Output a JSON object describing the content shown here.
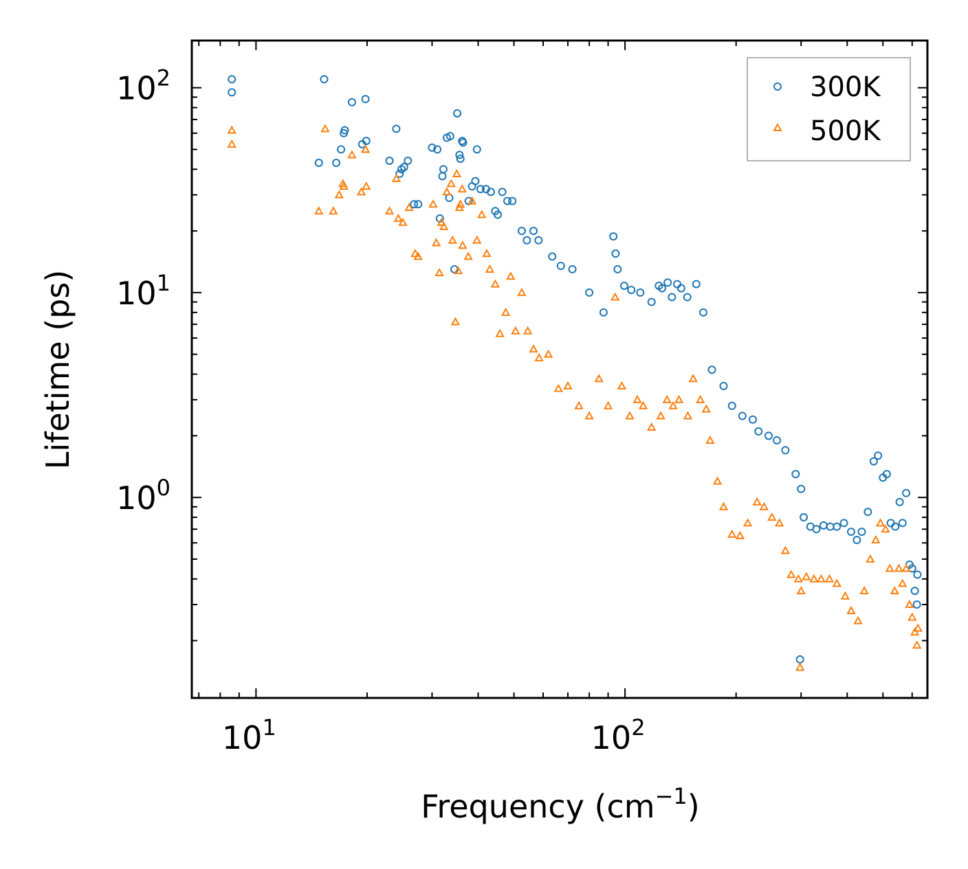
{
  "chart_data": {
    "type": "scatter",
    "title": "",
    "xlabel": "Frequency (cm",
    "xlabel_sup": "−1",
    "xlabel_end": ")",
    "ylabel": "Lifetime (ps)",
    "xscale": "log",
    "yscale": "log",
    "xlim": [
      6.7,
      660
    ],
    "ylim": [
      0.105,
      170
    ],
    "x_ticks": [
      {
        "value": 10,
        "base": "10",
        "exp": "1"
      },
      {
        "value": 100,
        "base": "10",
        "exp": "2"
      }
    ],
    "y_ticks": [
      {
        "value": 1,
        "base": "10",
        "exp": "0"
      },
      {
        "value": 10,
        "base": "10",
        "exp": "1"
      },
      {
        "value": 100,
        "base": "10",
        "exp": "2"
      }
    ],
    "legend_position": "top-right",
    "series": [
      {
        "name": "300K",
        "marker": "circle",
        "color": "#1f77b4",
        "points": [
          [
            8.6,
            110
          ],
          [
            8.6,
            95
          ],
          [
            15.3,
            110
          ],
          [
            14.8,
            43
          ],
          [
            16.5,
            43
          ],
          [
            17,
            50
          ],
          [
            17.3,
            60
          ],
          [
            17.4,
            62
          ],
          [
            18.2,
            85
          ],
          [
            19.4,
            53
          ],
          [
            19.9,
            55
          ],
          [
            19.8,
            88
          ],
          [
            23,
            44
          ],
          [
            24,
            63
          ],
          [
            24.5,
            38
          ],
          [
            24.8,
            40
          ],
          [
            25.2,
            41
          ],
          [
            25.8,
            44
          ],
          [
            26.8,
            27
          ],
          [
            27.5,
            27
          ],
          [
            30,
            51
          ],
          [
            31,
            50
          ],
          [
            31.5,
            23
          ],
          [
            32,
            37
          ],
          [
            32.2,
            40
          ],
          [
            32.9,
            57
          ],
          [
            33.6,
            58
          ],
          [
            33.4,
            29
          ],
          [
            34.5,
            13
          ],
          [
            35.1,
            75
          ],
          [
            35.6,
            47
          ],
          [
            35.8,
            45
          ],
          [
            36.2,
            55
          ],
          [
            36.4,
            54
          ],
          [
            37.7,
            28
          ],
          [
            38.5,
            33
          ],
          [
            39.3,
            35
          ],
          [
            39.7,
            50
          ],
          [
            40.6,
            32
          ],
          [
            42,
            32
          ],
          [
            43.3,
            31
          ],
          [
            44.5,
            25
          ],
          [
            45.2,
            24
          ],
          [
            46.5,
            31
          ],
          [
            48,
            28
          ],
          [
            49.5,
            28
          ],
          [
            52.5,
            20
          ],
          [
            54.2,
            18
          ],
          [
            56.5,
            20
          ],
          [
            58.3,
            18
          ],
          [
            63.5,
            15
          ],
          [
            67,
            13.5
          ],
          [
            72,
            13
          ],
          [
            80,
            10
          ],
          [
            87.5,
            8
          ],
          [
            93,
            18.8
          ],
          [
            94.3,
            15.5
          ],
          [
            95.5,
            13
          ],
          [
            99.5,
            10.8
          ],
          [
            104,
            10.3
          ],
          [
            110,
            10
          ],
          [
            118,
            9
          ],
          [
            123.5,
            10.8
          ],
          [
            126,
            10.5
          ],
          [
            130.5,
            11.2
          ],
          [
            134,
            9.5
          ],
          [
            138.5,
            11
          ],
          [
            142,
            10.5
          ],
          [
            147.5,
            9.5
          ],
          [
            156,
            11
          ],
          [
            163,
            8
          ],
          [
            172,
            4.2
          ],
          [
            185,
            3.5
          ],
          [
            195,
            2.8
          ],
          [
            208,
            2.5
          ],
          [
            222,
            2.4
          ],
          [
            230,
            2.1
          ],
          [
            245,
            2
          ],
          [
            258,
            1.9
          ],
          [
            272,
            1.7
          ],
          [
            290,
            1.3
          ],
          [
            300,
            1.1
          ],
          [
            305,
            0.8
          ],
          [
            318,
            0.72
          ],
          [
            330,
            0.7
          ],
          [
            345,
            0.73
          ],
          [
            360,
            0.72
          ],
          [
            375,
            0.72
          ],
          [
            392,
            0.75
          ],
          [
            410,
            0.68
          ],
          [
            425,
            0.62
          ],
          [
            438,
            0.68
          ],
          [
            455,
            0.85
          ],
          [
            472,
            1.5
          ],
          [
            485,
            1.6
          ],
          [
            500,
            1.25
          ],
          [
            512,
            1.3
          ],
          [
            525,
            0.75
          ],
          [
            540,
            0.72
          ],
          [
            555,
            0.95
          ],
          [
            565,
            0.75
          ],
          [
            578,
            1.05
          ],
          [
            590,
            0.47
          ],
          [
            600,
            0.45
          ],
          [
            610,
            0.35
          ],
          [
            618,
            0.3
          ],
          [
            620,
            0.42
          ],
          [
            298,
            0.162
          ]
        ]
      },
      {
        "name": "500K",
        "marker": "triangle",
        "color": "#ff7f0e",
        "points": [
          [
            8.6,
            62
          ],
          [
            8.6,
            53
          ],
          [
            14.8,
            25
          ],
          [
            15.4,
            63
          ],
          [
            16.2,
            25
          ],
          [
            16.8,
            30
          ],
          [
            17.2,
            34
          ],
          [
            17.3,
            33
          ],
          [
            18.2,
            47
          ],
          [
            19.3,
            31
          ],
          [
            19.9,
            33
          ],
          [
            19.8,
            50
          ],
          [
            23,
            25
          ],
          [
            24,
            36
          ],
          [
            24.3,
            23
          ],
          [
            25,
            22
          ],
          [
            26,
            26
          ],
          [
            27,
            15.5
          ],
          [
            27.5,
            15
          ],
          [
            30.2,
            27
          ],
          [
            30.8,
            17.5
          ],
          [
            31.4,
            12.5
          ],
          [
            31.8,
            22
          ],
          [
            32.3,
            21
          ],
          [
            32.9,
            31
          ],
          [
            33.8,
            34
          ],
          [
            34.1,
            18
          ],
          [
            34.7,
            7.2
          ],
          [
            35,
            38
          ],
          [
            35.3,
            12.8
          ],
          [
            35.6,
            26
          ],
          [
            35.8,
            27
          ],
          [
            36.3,
            17
          ],
          [
            36.2,
            32
          ],
          [
            37.6,
            15
          ],
          [
            38.5,
            28
          ],
          [
            39.7,
            18
          ],
          [
            40.9,
            24
          ],
          [
            42.2,
            15.5
          ],
          [
            43,
            13
          ],
          [
            44.5,
            11
          ],
          [
            45.8,
            6.3
          ],
          [
            47.5,
            8
          ],
          [
            49,
            12
          ],
          [
            50.5,
            6.5
          ],
          [
            52.5,
            10
          ],
          [
            54.5,
            6.5
          ],
          [
            56.5,
            5.3
          ],
          [
            58.5,
            4.8
          ],
          [
            62,
            5
          ],
          [
            66,
            3.4
          ],
          [
            70,
            3.5
          ],
          [
            75,
            2.8
          ],
          [
            80,
            2.5
          ],
          [
            85,
            3.8
          ],
          [
            90,
            2.8
          ],
          [
            94,
            9.5
          ],
          [
            98,
            3.5
          ],
          [
            103,
            2.5
          ],
          [
            108,
            3
          ],
          [
            112,
            2.8
          ],
          [
            118,
            2.2
          ],
          [
            125,
            2.5
          ],
          [
            130,
            3
          ],
          [
            135,
            2.8
          ],
          [
            140,
            3
          ],
          [
            148,
            2.5
          ],
          [
            153,
            3.8
          ],
          [
            160,
            3
          ],
          [
            166,
            2.7
          ],
          [
            170,
            1.9
          ],
          [
            178,
            1.2
          ],
          [
            185,
            0.9
          ],
          [
            195,
            0.66
          ],
          [
            205,
            0.65
          ],
          [
            215,
            0.75
          ],
          [
            228,
            0.95
          ],
          [
            238,
            0.9
          ],
          [
            250,
            0.8
          ],
          [
            262,
            0.75
          ],
          [
            272,
            0.55
          ],
          [
            282,
            0.42
          ],
          [
            295,
            0.4
          ],
          [
            300,
            0.35
          ],
          [
            310,
            0.41
          ],
          [
            325,
            0.4
          ],
          [
            340,
            0.4
          ],
          [
            358,
            0.4
          ],
          [
            375,
            0.38
          ],
          [
            395,
            0.33
          ],
          [
            410,
            0.28
          ],
          [
            428,
            0.25
          ],
          [
            445,
            0.35
          ],
          [
            462,
            0.5
          ],
          [
            478,
            0.62
          ],
          [
            492,
            0.75
          ],
          [
            508,
            0.7
          ],
          [
            522,
            0.45
          ],
          [
            538,
            0.35
          ],
          [
            552,
            0.45
          ],
          [
            565,
            0.38
          ],
          [
            578,
            0.45
          ],
          [
            590,
            0.3
          ],
          [
            600,
            0.26
          ],
          [
            610,
            0.22
          ],
          [
            618,
            0.19
          ],
          [
            622,
            0.23
          ],
          [
            298,
            0.148
          ]
        ]
      }
    ]
  }
}
